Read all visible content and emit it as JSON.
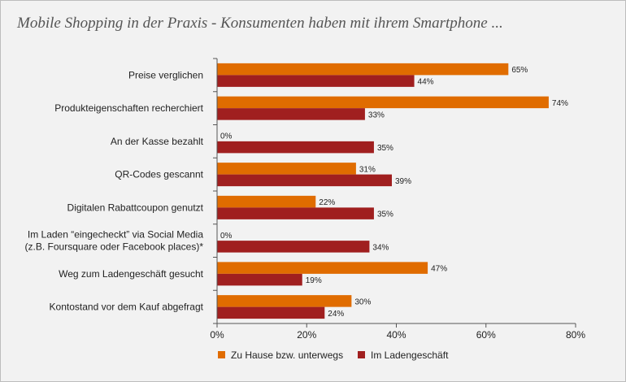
{
  "title": "Mobile Shopping in der Praxis - Konsumenten haben mit ihrem Smartphone ...",
  "colors": {
    "series1": "#e06c00",
    "series2": "#a01f1f",
    "axis": "#555555"
  },
  "chart_data": {
    "type": "bar",
    "orientation": "horizontal",
    "categories": [
      [
        "Preise verglichen"
      ],
      [
        "Produkteigenschaften recherchiert"
      ],
      [
        "An der Kasse bezahlt"
      ],
      [
        "QR-Codes gescannt"
      ],
      [
        "Digitalen Rabattcoupon genutzt"
      ],
      [
        "Im Laden “eingecheckt” via Social Media",
        "(z.B. Foursquare oder Facebook places)*"
      ],
      [
        "Weg zum Ladengeschäft gesucht"
      ],
      [
        "Kontostand vor dem Kauf abgefragt"
      ]
    ],
    "series": [
      {
        "name": "Zu Hause bzw. unterwegs",
        "values": [
          65,
          74,
          0,
          31,
          22,
          0,
          47,
          30
        ]
      },
      {
        "name": "Im Ladengeschäft",
        "values": [
          44,
          33,
          35,
          39,
          35,
          34,
          19,
          24
        ]
      }
    ],
    "xlim": [
      0,
      80
    ],
    "xticks": [
      "0%",
      "20%",
      "40%",
      "60%",
      "80%"
    ],
    "value_suffix": "%",
    "legend": "bottom",
    "grid": false
  }
}
